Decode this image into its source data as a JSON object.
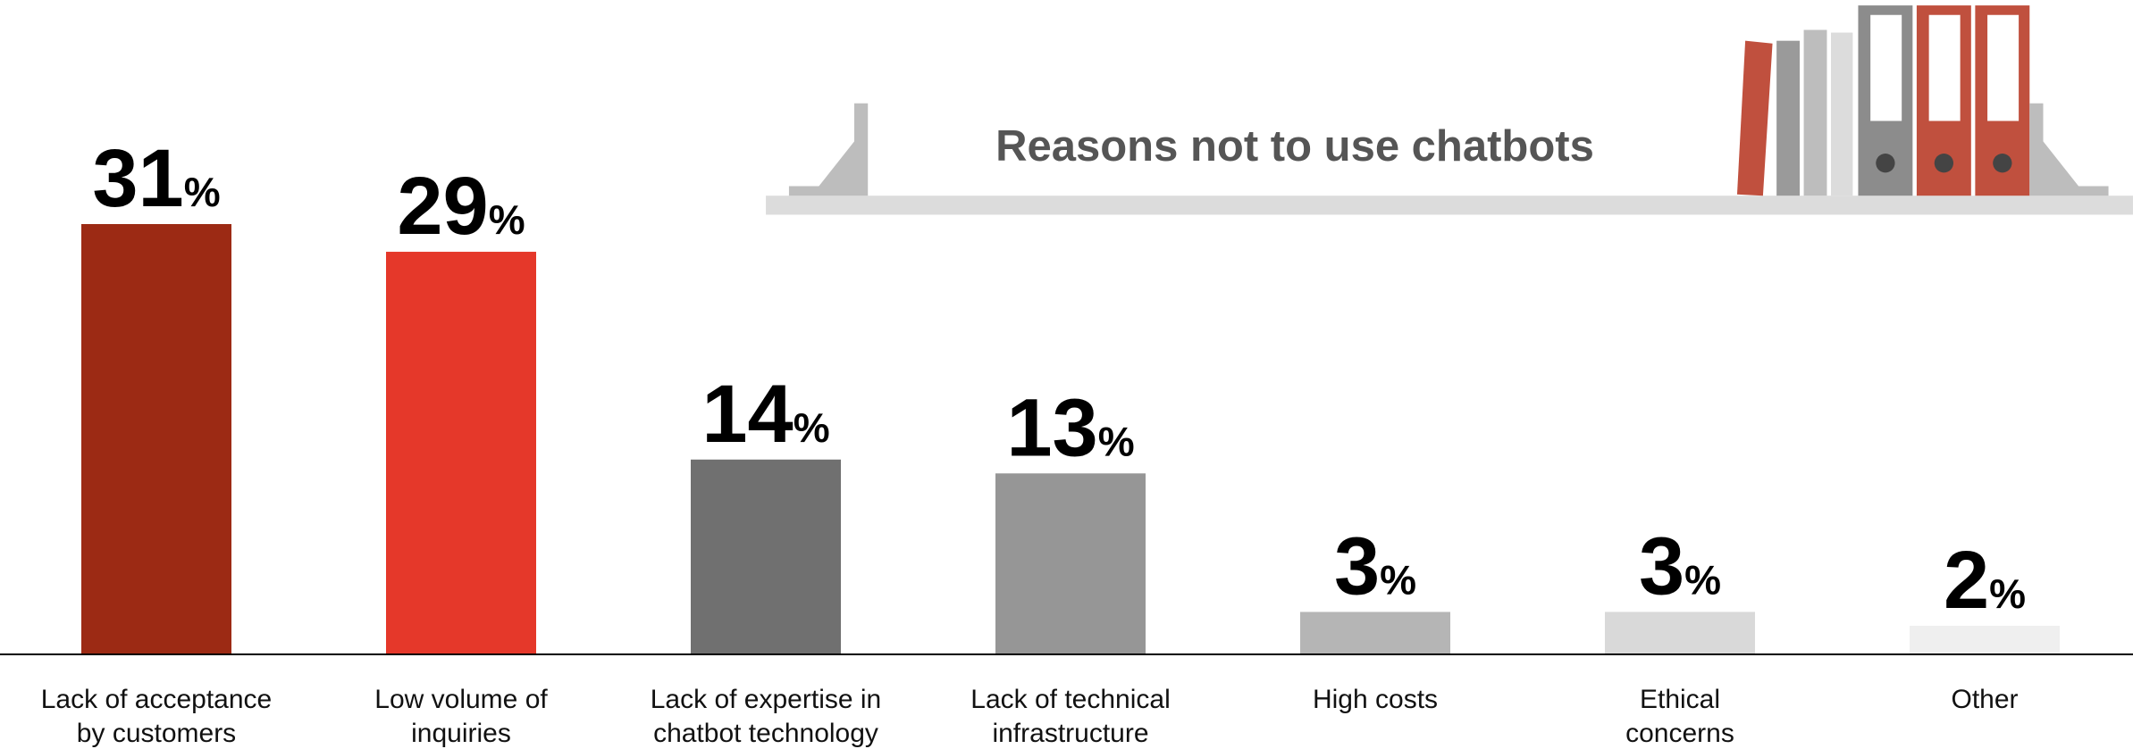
{
  "chart_data": {
    "type": "bar",
    "title": "Reasons not to use chatbots",
    "categories": [
      [
        "Lack of acceptance",
        "by customers"
      ],
      [
        "Low volume of",
        "inquiries"
      ],
      [
        "Lack of expertise in",
        "chatbot technology"
      ],
      [
        "Lack of technical",
        "infrastructure"
      ],
      [
        "High costs"
      ],
      [
        "Ethical",
        "concerns"
      ],
      [
        "Other"
      ]
    ],
    "values": [
      31,
      29,
      14,
      13,
      3,
      3,
      2
    ],
    "value_labels": [
      "31%",
      "29%",
      "14%",
      "13%",
      "3%",
      "3%",
      "2%"
    ],
    "colors": [
      "#9c2a14",
      "#e5382a",
      "#707070",
      "#969696",
      "#b5b5b5",
      "#d9d9d9",
      "#efefef"
    ]
  }
}
